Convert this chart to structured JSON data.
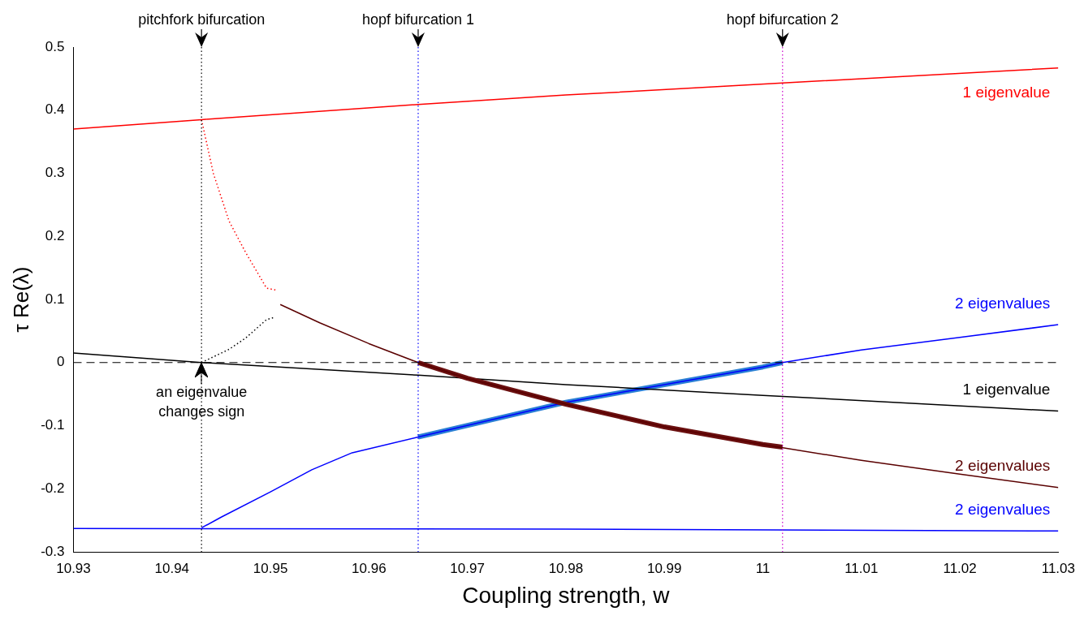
{
  "chart_data": {
    "type": "line",
    "xlabel": "Coupling strength, w",
    "ylabel": "τ Re(λ)",
    "xlim": [
      10.93,
      11.03
    ],
    "xticks": [
      10.93,
      10.94,
      10.95,
      10.96,
      10.97,
      10.98,
      10.99,
      11,
      11.01,
      11.02,
      11.03
    ],
    "ylim": [
      -0.3,
      0.5
    ],
    "yticks": [
      -0.3,
      -0.2,
      -0.1,
      0,
      0.1,
      0.2,
      0.3,
      0.4,
      0.5
    ],
    "grid": false,
    "legend": false,
    "marker": "none",
    "series": [
      {
        "name": "1 eigenvalue",
        "color": "#ff0000",
        "x": [
          10.93,
          10.943,
          10.965,
          10.98,
          11.002,
          11.03
        ],
        "values": [
          0.37,
          0.385,
          0.409,
          0.424,
          0.443,
          0.467
        ]
      },
      {
        "color": "#ff0000",
        "line_style": "dotted",
        "x": [
          10.943,
          10.9442,
          10.9458,
          10.9475,
          10.9496,
          10.9505
        ],
        "values": [
          0.385,
          0.3,
          0.224,
          0.174,
          0.118,
          0.115
        ]
      },
      {
        "color": "#000000",
        "line_style": "dotted",
        "x": [
          10.943,
          10.9458,
          10.9475,
          10.9496,
          10.9505
        ],
        "values": [
          0,
          0.021,
          0.039,
          0.068,
          0.072
        ]
      },
      {
        "name": "2 eigenvalues",
        "color": "#5a0000",
        "x": [
          10.951,
          10.955,
          10.96,
          10.965,
          10.97,
          10.98,
          10.99,
          11,
          11.01,
          11.02,
          11.03
        ],
        "values": [
          0.092,
          0.063,
          0.03,
          0,
          -0.025,
          -0.066,
          -0.102,
          -0.13,
          -0.155,
          -0.177,
          -0.198
        ]
      },
      {
        "color": "#6b1010",
        "x": [
          10.965,
          10.97,
          10.98,
          10.99,
          11,
          11.002
        ],
        "values": [
          0,
          -0.025,
          -0.066,
          -0.102,
          -0.13,
          -0.134
        ]
      },
      {
        "name": "1 eigenvalue",
        "color": "#000000",
        "x": [
          10.93,
          10.943,
          10.965,
          10.98,
          11.0,
          11.03
        ],
        "values": [
          0.015,
          0,
          -0.02,
          -0.035,
          -0.052,
          -0.077
        ]
      },
      {
        "name": "2 eigenvalues",
        "color": "#0000ff",
        "x": [
          10.943,
          10.945,
          10.95,
          10.9542,
          10.9583,
          10.965,
          10.98,
          10.99,
          11.0,
          11.002,
          11.01,
          11.02,
          11.03
        ],
        "values": [
          -0.262,
          -0.245,
          -0.205,
          -0.17,
          -0.143,
          -0.118,
          -0.063,
          -0.035,
          -0.007,
          0,
          0.02,
          0.04,
          0.06
        ]
      },
      {
        "color": "#2a7fd4",
        "x": [
          10.965,
          10.98,
          10.99,
          11.0,
          11.002
        ],
        "values": [
          -0.118,
          -0.063,
          -0.035,
          -0.007,
          0
        ]
      },
      {
        "name": "2 eigenvalues",
        "color": "#0000ff",
        "x": [
          10.93,
          10.98,
          11.03
        ],
        "values": [
          -0.263,
          -0.264,
          -0.267
        ]
      }
    ],
    "ref_lines": [
      {
        "axis": "y",
        "value": 0,
        "color": "#000000",
        "line_style": "dashed"
      },
      {
        "axis": "x",
        "value": 10.943,
        "label": "pitchfork bifurcation",
        "color": "#000000",
        "line_style": "dotted"
      },
      {
        "axis": "x",
        "value": 10.965,
        "label": "hopf bifurcation 1",
        "color": "#0000ff",
        "line_style": "dotted"
      },
      {
        "axis": "x",
        "value": 11.002,
        "label": "hopf bifurcation 2",
        "color": "#cc00cc",
        "line_style": "dotted"
      }
    ],
    "annotations": [
      {
        "text": "an eigenvalue changes sign",
        "x": 10.943,
        "y": 0
      }
    ]
  }
}
